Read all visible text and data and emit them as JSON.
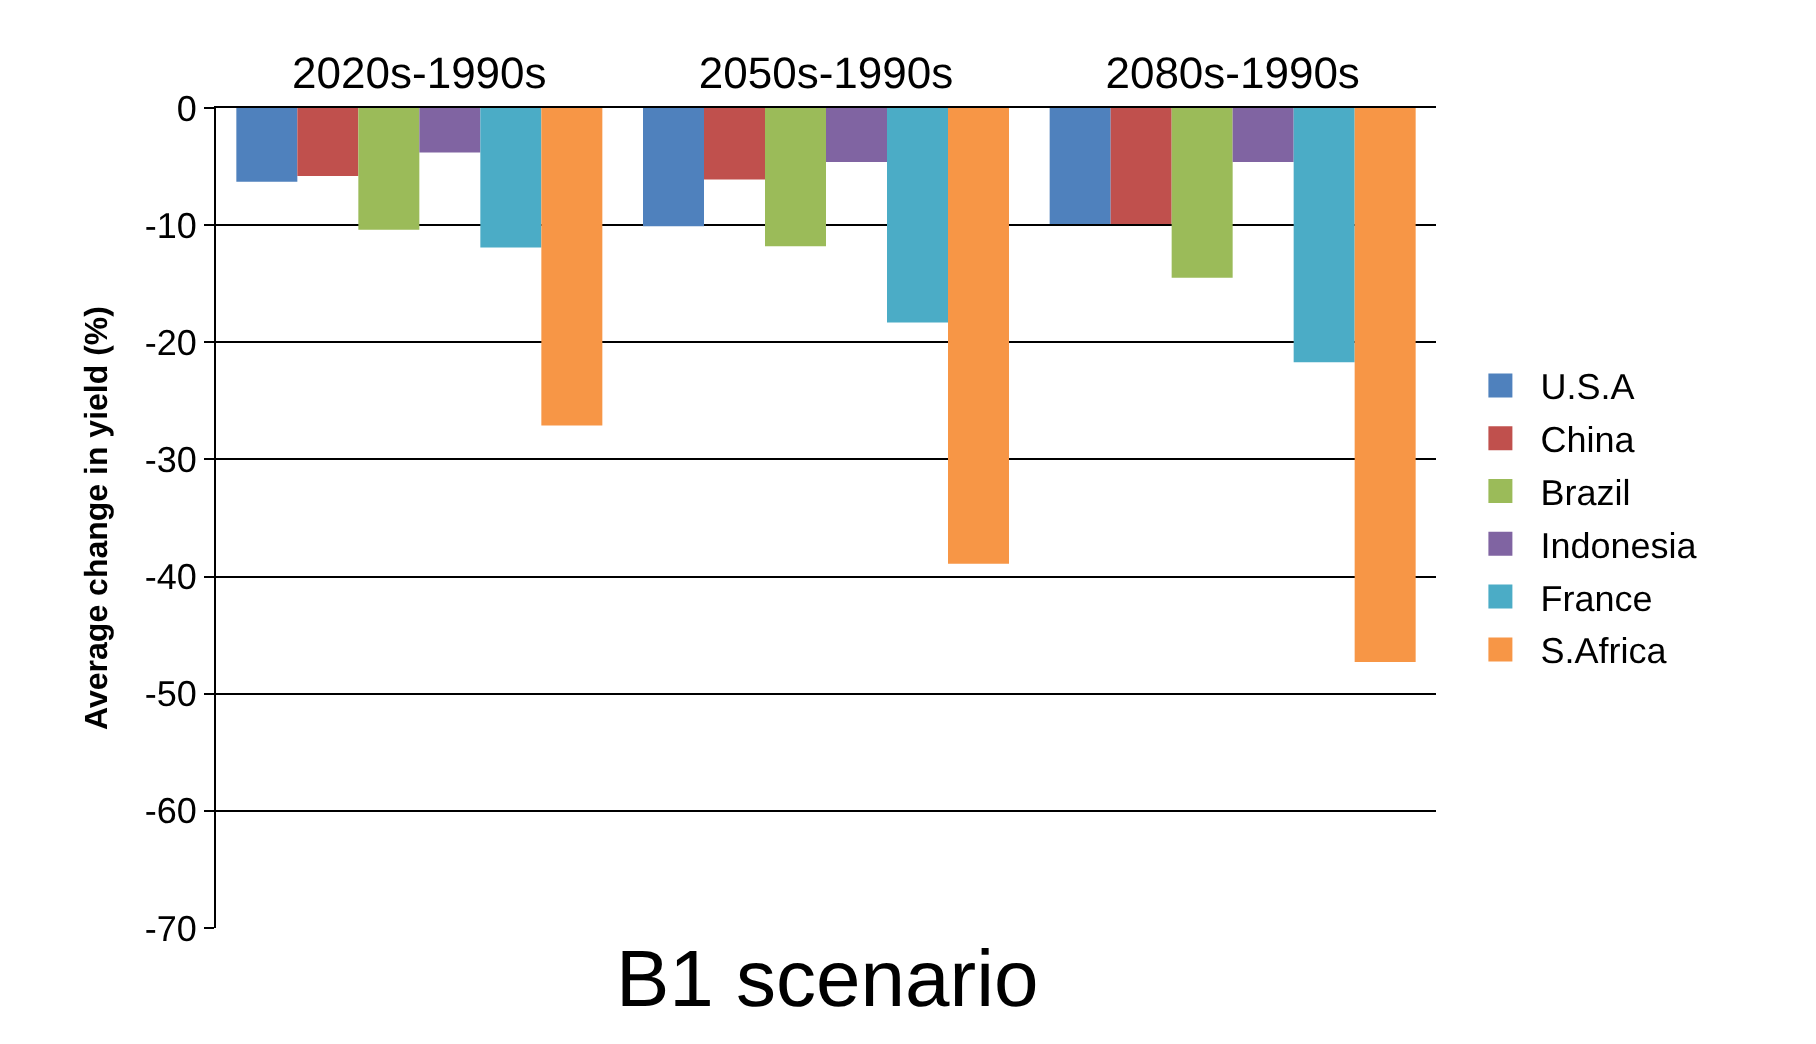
{
  "chart_data": {
    "type": "bar",
    "xlabel": "B1 scenario",
    "ylabel": "Average change in yield (%)",
    "categories": [
      "2020s-1990s",
      "2050s-1990s",
      "2080s-1990s"
    ],
    "series": [
      {
        "name": "U.S.A",
        "color": "#4f81bd",
        "values": [
          -6.3,
          -10.1,
          -9.9
        ]
      },
      {
        "name": "China",
        "color": "#c0504d",
        "values": [
          -5.8,
          -6.1,
          -9.9
        ]
      },
      {
        "name": "Brazil",
        "color": "#9bbb59",
        "values": [
          -10.4,
          -11.8,
          -14.5
        ]
      },
      {
        "name": "Indonesia",
        "color": "#8064a2",
        "values": [
          -3.8,
          -4.6,
          -4.6
        ]
      },
      {
        "name": "France",
        "color": "#4bacc6",
        "values": [
          -11.9,
          -18.3,
          -21.7
        ]
      },
      {
        "name": "S.Africa",
        "color": "#f79646",
        "values": [
          -27.1,
          -38.9,
          -47.3
        ]
      }
    ],
    "ylim": [
      -70,
      0
    ],
    "yticks": [
      0,
      -10,
      -20,
      -30,
      -40,
      -50,
      -60,
      -70
    ],
    "grid": "y",
    "legend": "right"
  }
}
